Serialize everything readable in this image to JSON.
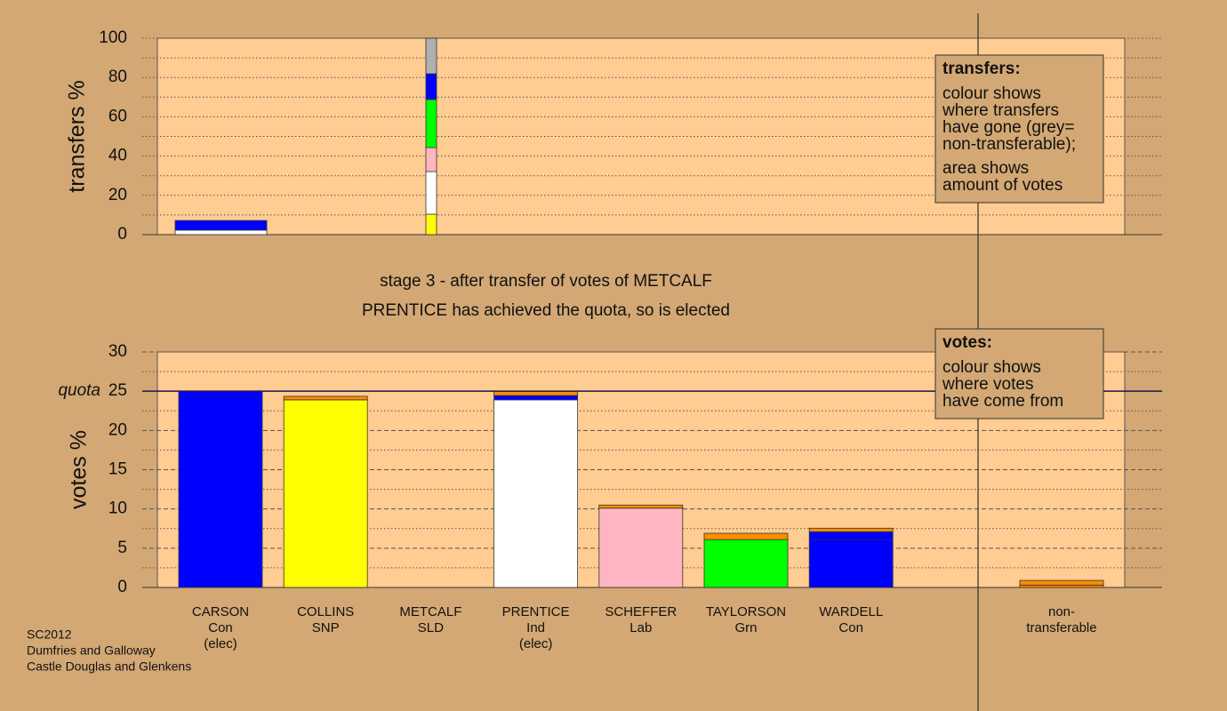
{
  "chart_data": [
    {
      "type": "stacked-bar",
      "ylabel": "transfers %",
      "ylim": [
        0,
        100
      ],
      "yticks": [
        0,
        20,
        40,
        60,
        80,
        100
      ],
      "minor_yticks": [
        10,
        30,
        50,
        70,
        90
      ],
      "grid_style": "dotted",
      "bars": [
        [
          {
            "color": "#ffffff",
            "value": 2.3
          },
          {
            "color": "#0000ff",
            "value": 4.9
          }
        ],
        [
          {
            "color": "#ffff00",
            "value": 10.4
          },
          {
            "color": "#ffffff",
            "value": 21.7
          },
          {
            "color": "#ffb6c1",
            "value": 12.2
          },
          {
            "color": "#00ff00",
            "value": 24.5
          },
          {
            "color": "#0000ff",
            "value": 13.1
          },
          {
            "color": "#b0b0b0",
            "value": 18.1
          }
        ]
      ],
      "legend": {
        "title": "transfers:",
        "paragraphs": [
          [
            "colour shows",
            "where transfers",
            "have gone (grey=",
            "non-transferable);"
          ],
          [
            "area shows",
            "amount of votes"
          ]
        ]
      }
    },
    {
      "type": "stacked-bar",
      "title": "stage 3 - after transfer of votes of METCALF",
      "subtitle": "PRENTICE has achieved the quota, so is elected",
      "ylabel": "votes %",
      "ylim": [
        0,
        30
      ],
      "yticks": [
        0,
        5,
        10,
        15,
        20,
        25,
        30
      ],
      "minor_yticks": [
        2.5,
        7.5,
        12.5,
        17.5,
        22.5,
        27.5
      ],
      "grid_style": "dashed",
      "quota": {
        "label": "quota",
        "value": 25
      },
      "categories": [
        [
          "CARSON",
          "Con",
          "(elec)"
        ],
        [
          "COLLINS",
          "SNP"
        ],
        [
          "METCALF",
          "SLD"
        ],
        [
          "PRENTICE",
          "Ind",
          "(elec)"
        ],
        [
          "SCHEFFER",
          "Lab"
        ],
        [
          "TAYLORSON",
          "Grn"
        ],
        [
          "WARDELL",
          "Con"
        ],
        [
          "non-",
          "transferable"
        ]
      ],
      "bars": [
        [
          {
            "color": "#0000ff",
            "value": 25
          }
        ],
        [
          {
            "color": "#ffff00",
            "value": 23.9
          },
          {
            "color": "#ff8c00",
            "value": 0.45
          }
        ],
        [],
        [
          {
            "color": "#ffffff",
            "value": 23.9
          },
          {
            "color": "#0000ff",
            "value": 0.55
          },
          {
            "color": "#ff8c00",
            "value": 0.55
          }
        ],
        [
          {
            "color": "#ffb6c1",
            "value": 10.1
          },
          {
            "color": "#ff8c00",
            "value": 0.4
          }
        ],
        [
          {
            "color": "#00ff00",
            "value": 6.1
          },
          {
            "color": "#ff8c00",
            "value": 0.8
          }
        ],
        [
          {
            "color": "#0000ff",
            "value": 6.1
          },
          {
            "color": "#0000ff",
            "value": 1.0
          },
          {
            "color": "#ff8c00",
            "value": 0.45
          }
        ],
        [
          {
            "color": "#ff8c00",
            "value": 0.3
          },
          {
            "color": "#ff8c00",
            "value": 0.6
          }
        ]
      ],
      "legend": {
        "title": "votes:",
        "paragraphs": [
          [
            "colour shows",
            "where votes",
            "have come from"
          ]
        ]
      }
    }
  ],
  "footer": [
    "SC2012",
    "Dumfries and Galloway",
    "Castle Douglas and Glenkens"
  ]
}
